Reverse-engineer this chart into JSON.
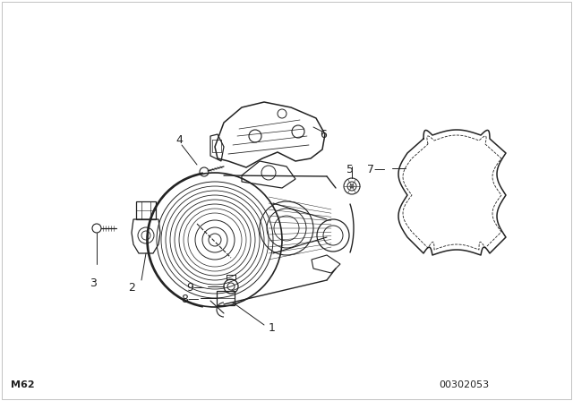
{
  "bg_color": "#ffffff",
  "line_color": "#222222",
  "text_color": "#222222",
  "title_bottom_left": "M62",
  "part_number": "00302053",
  "figsize": [
    6.4,
    4.48
  ],
  "dpi": 100,
  "border_color": "#cccccc"
}
